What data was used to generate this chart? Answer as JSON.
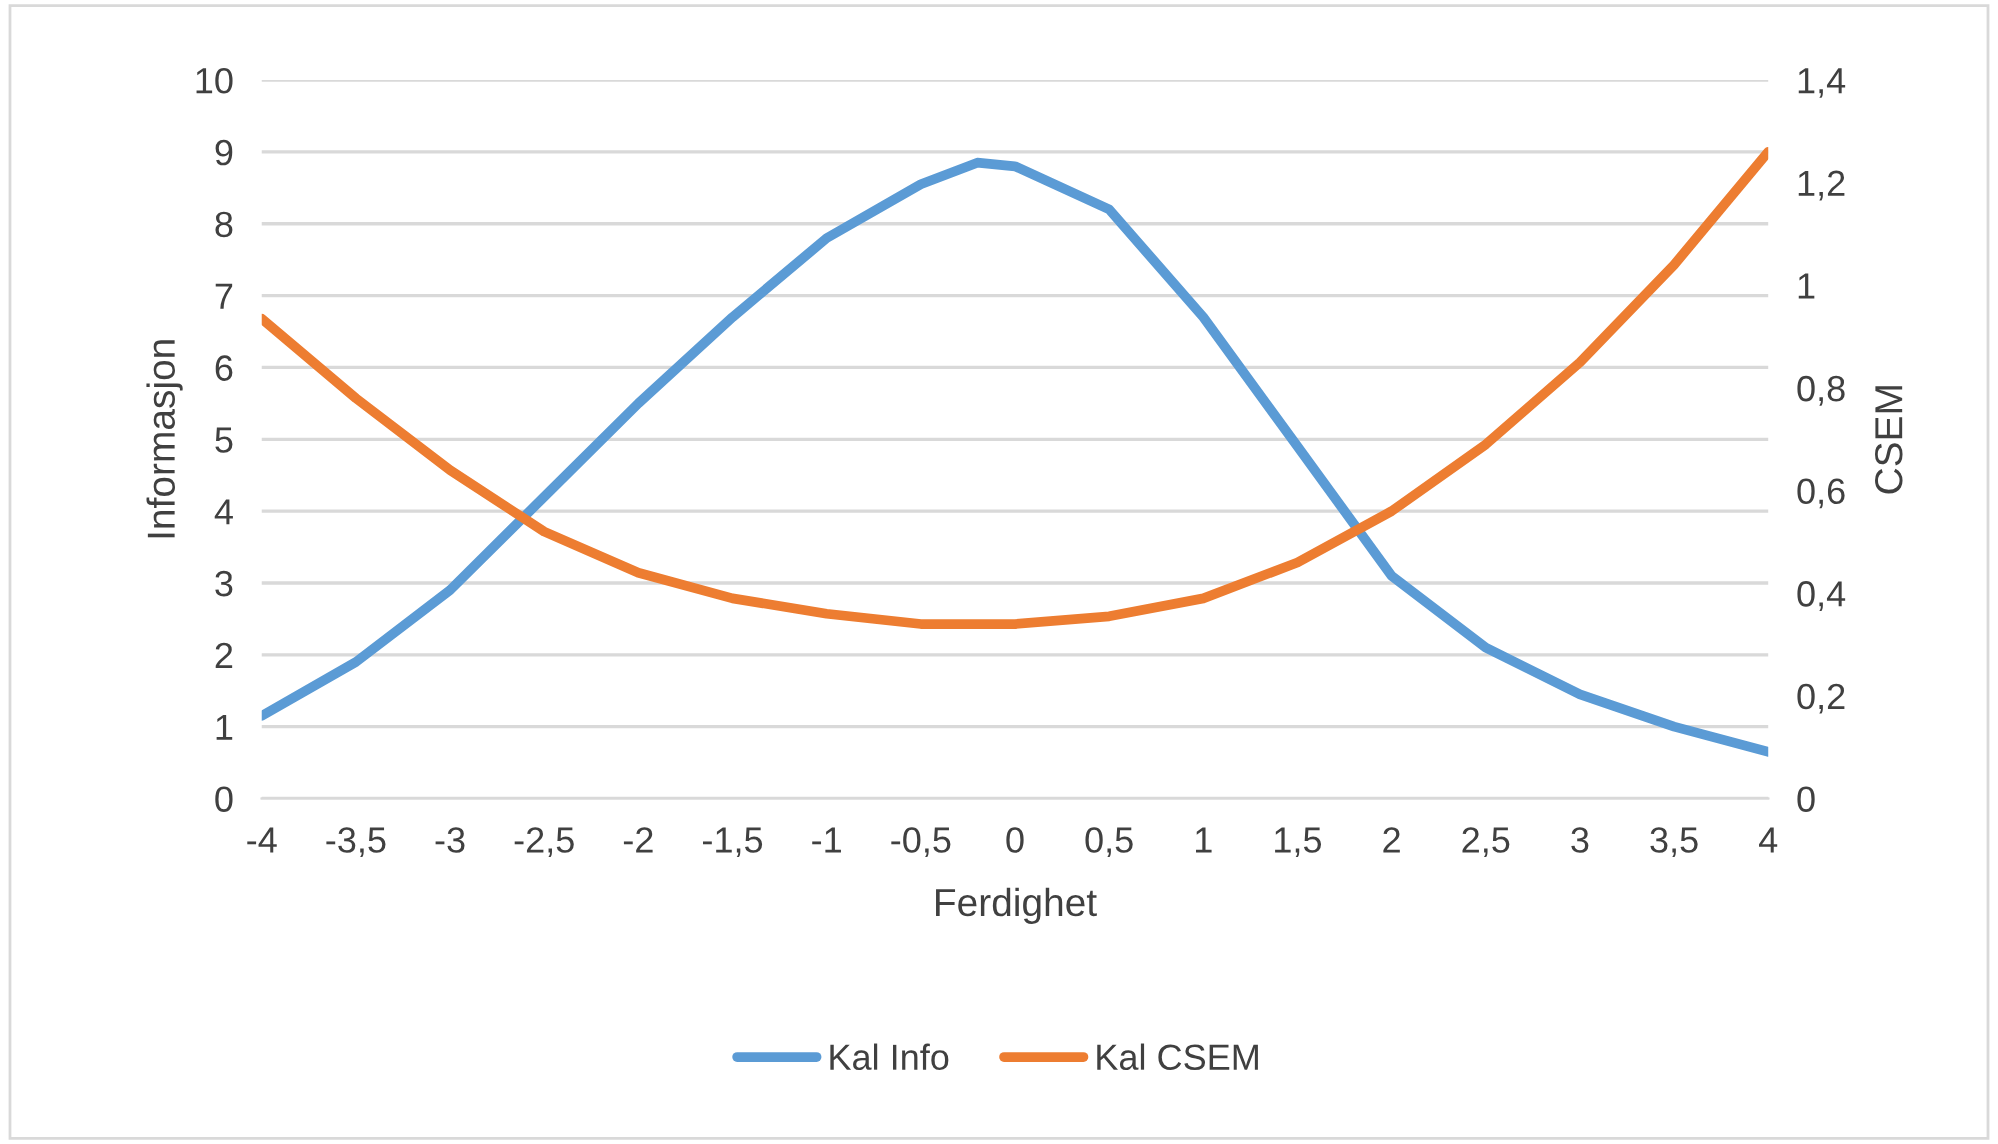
{
  "chart_data": {
    "type": "line",
    "xlabel": "Ferdighet",
    "ylabel": "Informasjon",
    "y2label": "CSEM",
    "x": [
      -4,
      -3.5,
      -3,
      -2.5,
      -2,
      -1.5,
      -1,
      -0.5,
      -0.2,
      0,
      0.5,
      1,
      1.5,
      2,
      2.5,
      3,
      3.5,
      4
    ],
    "series": [
      {
        "name": "Kal Info",
        "color": "#5b9bd5",
        "values": [
          1.15,
          1.9,
          2.9,
          4.2,
          5.5,
          6.7,
          7.8,
          8.55,
          8.85,
          8.8,
          8.2,
          6.7,
          4.9,
          3.1,
          2.1,
          1.45,
          1.0,
          0.65
        ]
      },
      {
        "name": "Kal CSEM",
        "color": "#ed7d31",
        "axis": "y2",
        "values": [
          0.935,
          0.78,
          0.64,
          0.52,
          0.44,
          0.39,
          0.36,
          0.34,
          0.34,
          0.34,
          0.355,
          0.39,
          0.46,
          0.56,
          0.69,
          0.85,
          1.04,
          1.26
        ]
      }
    ],
    "xlim": [
      -4,
      4
    ],
    "xticks": [
      -4,
      {
        "value": -3.5,
        "label": "-3,5"
      },
      -3,
      {
        "value": -2.5,
        "label": "-2,5"
      },
      -2,
      {
        "value": -1.5,
        "label": "-1,5"
      },
      -1,
      {
        "value": -0.5,
        "label": "-0,5"
      },
      0,
      {
        "value": 0.5,
        "label": "0,5"
      },
      1,
      {
        "value": 1.5,
        "label": "1,5"
      },
      2,
      {
        "value": 2.5,
        "label": "2,5"
      },
      3,
      {
        "value": 3.5,
        "label": "3,5"
      },
      4
    ],
    "ylim": [
      0,
      10
    ],
    "yticks": [
      0,
      1,
      2,
      3,
      4,
      5,
      6,
      7,
      8,
      9,
      10
    ],
    "y2lim": [
      0,
      1.4
    ],
    "y2ticks": [
      0,
      {
        "value": 0.2,
        "label": "0,2"
      },
      {
        "value": 0.4,
        "label": "0,4"
      },
      {
        "value": 0.6,
        "label": "0,6"
      },
      {
        "value": 0.8,
        "label": "0,8"
      },
      1,
      {
        "value": 1.2,
        "label": "1,2"
      },
      {
        "value": 1.4,
        "label": "1,4"
      }
    ],
    "grid": "y",
    "legend": "bottom",
    "marker": "none",
    "line_style": "solid"
  }
}
